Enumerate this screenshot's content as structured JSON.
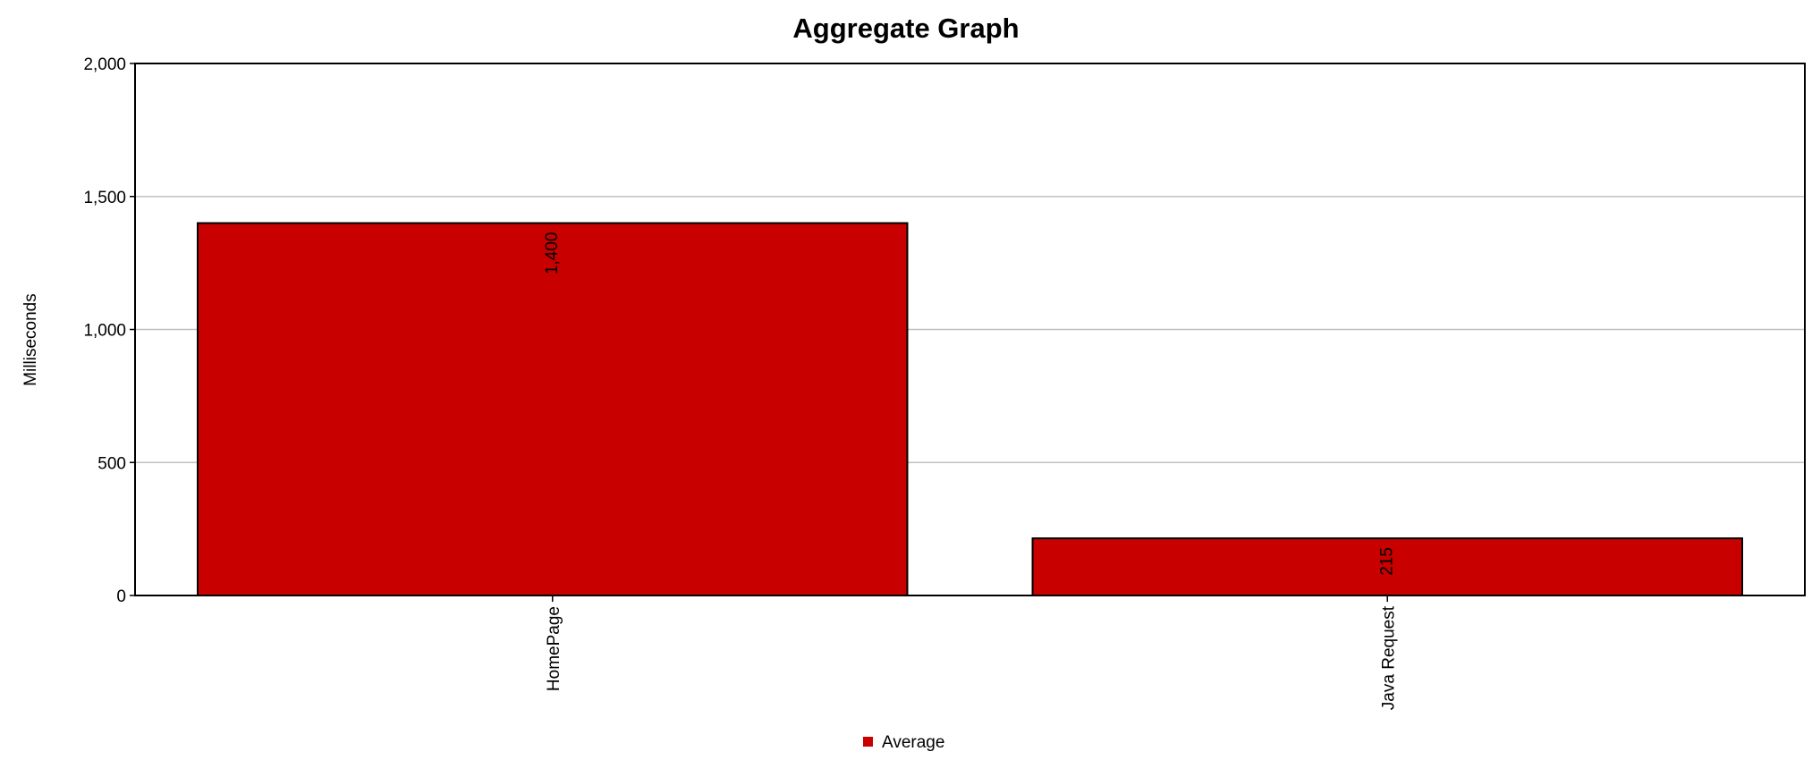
{
  "chart_data": {
    "type": "bar",
    "title": "Aggregate Graph",
    "xlabel": "",
    "ylabel": "Milliseconds",
    "categories": [
      "HomePage",
      "Java Request"
    ],
    "series": [
      {
        "name": "Average",
        "color": "#c80000",
        "values": [
          1400,
          215
        ],
        "value_labels": [
          "1,400",
          "215"
        ]
      }
    ],
    "ylim": [
      0,
      2000
    ],
    "yticks": [
      0,
      500,
      1000,
      1500,
      2000
    ],
    "ytick_labels": [
      "0",
      "500",
      "1,000",
      "1,500",
      "2,000"
    ],
    "grid": true,
    "legend": "bottom-center",
    "colors": {
      "bar_fill": "#c80000",
      "bar_outline": "#000000",
      "grid": "#c0c0c0",
      "background": "#ffffff"
    }
  }
}
